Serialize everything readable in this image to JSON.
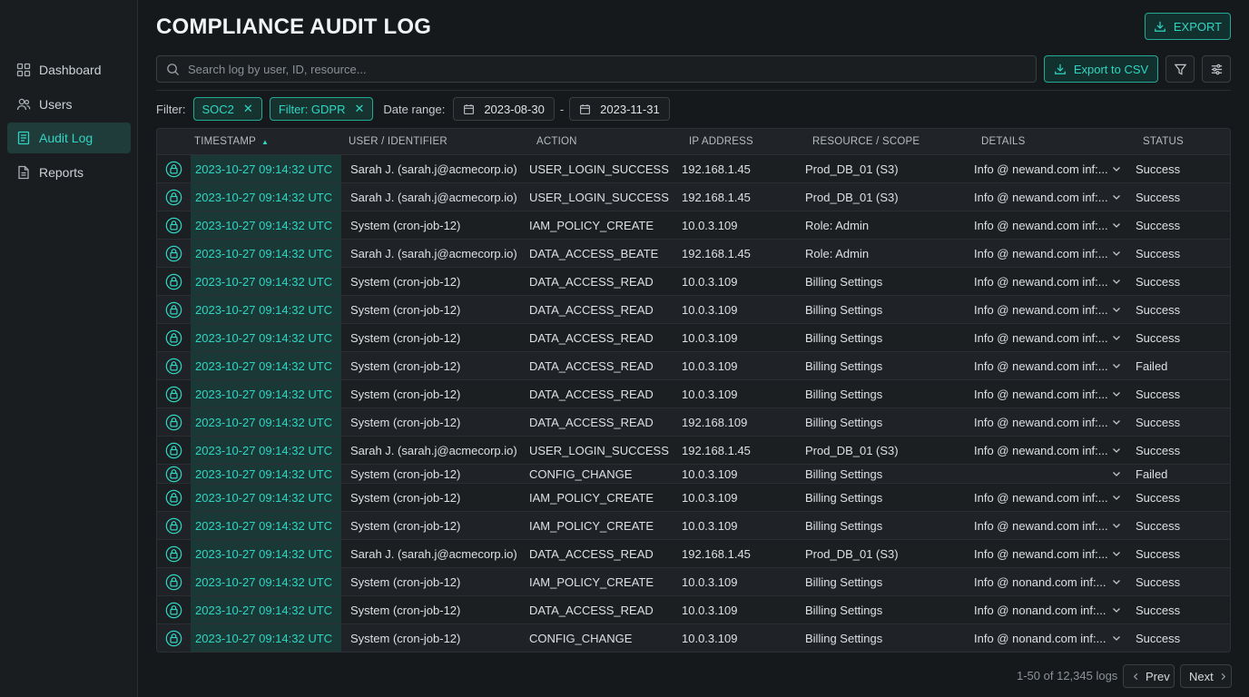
{
  "sidebar": {
    "items": [
      {
        "label": "Dashboard",
        "icon": "grid-icon"
      },
      {
        "label": "Users",
        "icon": "users-icon"
      },
      {
        "label": "Audit Log",
        "icon": "document-icon",
        "active": true
      },
      {
        "label": "Reports",
        "icon": "file-icon"
      }
    ]
  },
  "header": {
    "title": "COMPLIANCE AUDIT LOG",
    "export_label": "EXPORT"
  },
  "toolbar": {
    "search_placeholder": "Search log by user, ID, resource...",
    "export_csv_label": "Export to CSV"
  },
  "filters": {
    "label": "Filter:",
    "chips": [
      "SOC2",
      "Filter: GDPR"
    ],
    "date_range_label": "Date range:",
    "date_from": "2023-08-30",
    "date_separator": "-",
    "date_to": "2023-11-31"
  },
  "table": {
    "columns": [
      "TIMESTAMP",
      "USER / IDENTIFIER",
      "ACTION",
      "IP ADDRESS",
      "RESOURCE / SCOPE",
      "DETAILS",
      "STATUS"
    ],
    "sort_indicator": "▲",
    "rows": [
      {
        "ts": "2023-10-27 09:14:32 UTC",
        "user": "Sarah J. (sarah.j@acmecorp.io)",
        "action": "USER_LOGIN_SUCCESS",
        "ip": "192.168.1.45",
        "resource": "Prod_DB_01 (S3)",
        "details": "Info @ newand.com inf:...",
        "status": "Success"
      },
      {
        "ts": "2023-10-27 09:14:32 UTC",
        "user": "Sarah J. (sarah.j@acmecorp.io)",
        "action": "USER_LOGIN_SUCCESS",
        "ip": "192.168.1.45",
        "resource": "Prod_DB_01 (S3)",
        "details": "Info @ newand.com inf:...",
        "status": "Success"
      },
      {
        "ts": "2023-10-27 09:14:32 UTC",
        "user": "System (cron-job-12)",
        "action": "IAM_POLICY_CREATE",
        "ip": "10.0.3.109",
        "resource": "Role: Admin",
        "details": "Info @ newand.com inf:...",
        "status": "Success"
      },
      {
        "ts": "2023-10-27 09:14:32 UTC",
        "user": "Sarah J. (sarah.j@acmecorp.io)",
        "action": "DATA_ACCESS_BEATE",
        "ip": "192.168.1.45",
        "resource": "Role: Admin",
        "details": "Info @ newand.com inf:...",
        "status": "Success"
      },
      {
        "ts": "2023-10-27 09:14:32 UTC",
        "user": "System (cron-job-12)",
        "action": "DATA_ACCESS_READ",
        "ip": "10.0.3.109",
        "resource": "Billing Settings",
        "details": "Info @ newand.com inf:...",
        "status": "Success"
      },
      {
        "ts": "2023-10-27 09:14:32 UTC",
        "user": "System (cron-job-12)",
        "action": "DATA_ACCESS_READ",
        "ip": "10.0.3.109",
        "resource": "Billing Settings",
        "details": "Info @ newand.com inf:...",
        "status": "Success"
      },
      {
        "ts": "2023-10-27 09:14:32 UTC",
        "user": "System (cron-job-12)",
        "action": "DATA_ACCESS_READ",
        "ip": "10.0.3.109",
        "resource": "Billing Settings",
        "details": "Info @ newand.com inf:...",
        "status": "Success"
      },
      {
        "ts": "2023-10-27 09:14:32 UTC",
        "user": "System (cron-job-12)",
        "action": "DATA_ACCESS_READ",
        "ip": "10.0.3.109",
        "resource": "Billing Settings",
        "details": "Info @ newand.com inf:...",
        "status": "Failed"
      },
      {
        "ts": "2023-10-27 09:14:32 UTC",
        "user": "System (cron-job-12)",
        "action": "DATA_ACCESS_READ",
        "ip": "10.0.3.109",
        "resource": "Billing Settings",
        "details": "Info @ newand.com inf:...",
        "status": "Success"
      },
      {
        "ts": "2023-10-27 09:14:32 UTC",
        "user": "System (cron-job-12)",
        "action": "DATA_ACCESS_READ",
        "ip": "192.168.109",
        "resource": "Billing Settings",
        "details": "Info @ newand.com inf:...",
        "status": "Success"
      },
      {
        "ts": "2023-10-27 09:14:32 UTC",
        "user": "Sarah J. (sarah.j@acmecorp.io)",
        "action": "USER_LOGIN_SUCCESS",
        "ip": "192.168.1.45",
        "resource": "Prod_DB_01 (S3)",
        "details": "Info @ newand.com inf:...",
        "status": "Success"
      },
      {
        "ts": "2023-10-27 09:14:32 UTC",
        "user": "System (cron-job-12)",
        "action": "CONFIG_CHANGE",
        "ip": "10.0.3.109",
        "resource": "Billing Settings",
        "details": "",
        "status": "Failed"
      },
      {
        "ts": "2023-10-27 09:14:32 UTC",
        "user": "System (cron-job-12)",
        "action": "IAM_POLICY_CREATE",
        "ip": "10.0.3.109",
        "resource": "Billing Settings",
        "details": "Info @ newand.com inf:...",
        "status": "Success"
      },
      {
        "ts": "2023-10-27 09:14:32 UTC",
        "user": "System (cron-job-12)",
        "action": "IAM_POLICY_CREATE",
        "ip": "10.0.3.109",
        "resource": "Billing Settings",
        "details": "Info @ newand.com inf:...",
        "status": "Success"
      },
      {
        "ts": "2023-10-27 09:14:32 UTC",
        "user": "Sarah J. (sarah.j@acmecorp.io)",
        "action": "DATA_ACCESS_READ",
        "ip": "192.168.1.45",
        "resource": "Prod_DB_01 (S3)",
        "details": "Info @ newand.com inf:...",
        "status": "Success"
      },
      {
        "ts": "2023-10-27 09:14:32 UTC",
        "user": "System (cron-job-12)",
        "action": "IAM_POLICY_CREATE",
        "ip": "10.0.3.109",
        "resource": "Billing Settings",
        "details": "Info @ nonand.com inf:...",
        "status": "Success"
      },
      {
        "ts": "2023-10-27 09:14:32 UTC",
        "user": "System (cron-job-12)",
        "action": "DATA_ACCESS_READ",
        "ip": "10.0.3.109",
        "resource": "Billing Settings",
        "details": "Info @ nonand.com inf:...",
        "status": "Success"
      },
      {
        "ts": "2023-10-27 09:14:32 UTC",
        "user": "System (cron-job-12)",
        "action": "CONFIG_CHANGE",
        "ip": "10.0.3.109",
        "resource": "Billing Settings",
        "details": "Info @ nonand.com inf:...",
        "status": "Success"
      }
    ]
  },
  "pagination": {
    "info": "1-50 of 12,345 logs",
    "prev_label": "Prev",
    "next_label": "Next"
  },
  "colors": {
    "accent": "#2fd6c3",
    "background": "#16191c",
    "sidebar": "#1a1d20"
  }
}
